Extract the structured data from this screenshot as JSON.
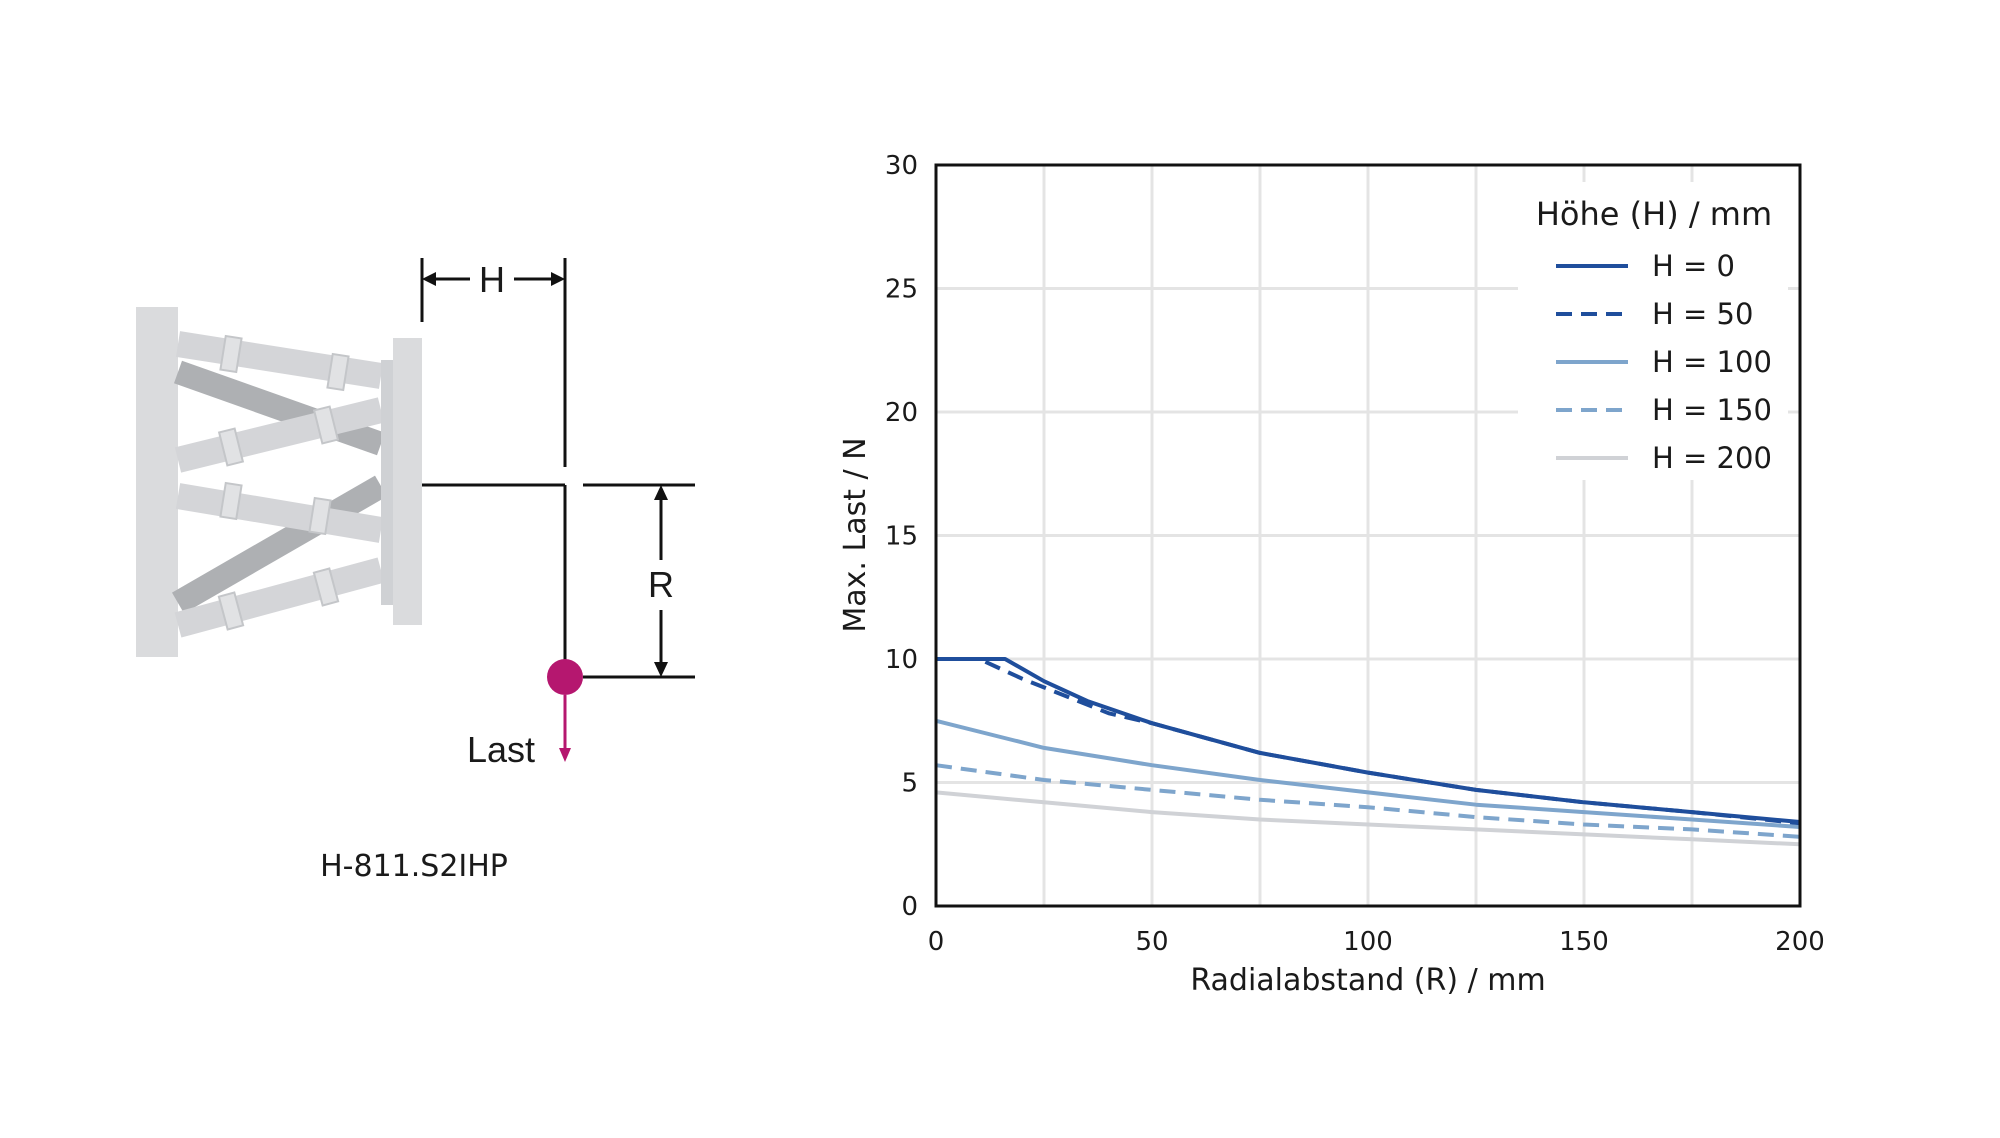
{
  "diagram": {
    "model": "H-811.S2IHP",
    "label_h": "H",
    "label_r": "R",
    "label_load": "Last",
    "load_color": "#b5176f"
  },
  "chart_data": {
    "type": "line",
    "xlabel": "Radialabstand (R) / mm",
    "ylabel": "Max. Last / N",
    "xlim": [
      0,
      200
    ],
    "ylim": [
      0,
      30
    ],
    "xticks": [
      0,
      50,
      100,
      150,
      200
    ],
    "yticks": [
      0,
      5,
      10,
      15,
      20,
      25,
      30
    ],
    "grid": true,
    "legend_title": "Höhe (H) / mm",
    "legend_position": "top-right",
    "series": [
      {
        "name": "H = 0",
        "color": "#1f4e9c",
        "dash": "solid",
        "x": [
          0,
          16,
          25,
          35,
          50,
          75,
          100,
          125,
          150,
          175,
          200
        ],
        "y": [
          10.0,
          10.0,
          9.1,
          8.3,
          7.4,
          6.2,
          5.4,
          4.7,
          4.2,
          3.8,
          3.4
        ]
      },
      {
        "name": "H = 50",
        "color": "#1f4e9c",
        "dash": "dashed",
        "x": [
          0,
          10,
          20,
          30,
          40,
          50,
          75,
          100,
          125,
          150,
          175,
          200
        ],
        "y": [
          10.0,
          10.0,
          9.2,
          8.5,
          7.8,
          7.4,
          6.2,
          5.4,
          4.7,
          4.2,
          3.8,
          3.35
        ]
      },
      {
        "name": "H = 100",
        "color": "#7ea5cc",
        "dash": "solid",
        "x": [
          0,
          25,
          50,
          75,
          100,
          125,
          150,
          175,
          200
        ],
        "y": [
          7.5,
          6.4,
          5.7,
          5.1,
          4.6,
          4.1,
          3.8,
          3.5,
          3.2
        ]
      },
      {
        "name": "H = 150",
        "color": "#7ea5cc",
        "dash": "dashed",
        "x": [
          0,
          25,
          50,
          75,
          100,
          125,
          150,
          175,
          200
        ],
        "y": [
          5.7,
          5.1,
          4.7,
          4.3,
          4.0,
          3.6,
          3.3,
          3.1,
          2.8
        ]
      },
      {
        "name": "H = 200",
        "color": "#d0d2d6",
        "dash": "solid",
        "x": [
          0,
          25,
          50,
          75,
          100,
          125,
          150,
          175,
          200
        ],
        "y": [
          4.6,
          4.2,
          3.8,
          3.5,
          3.3,
          3.1,
          2.9,
          2.7,
          2.5
        ]
      }
    ]
  }
}
